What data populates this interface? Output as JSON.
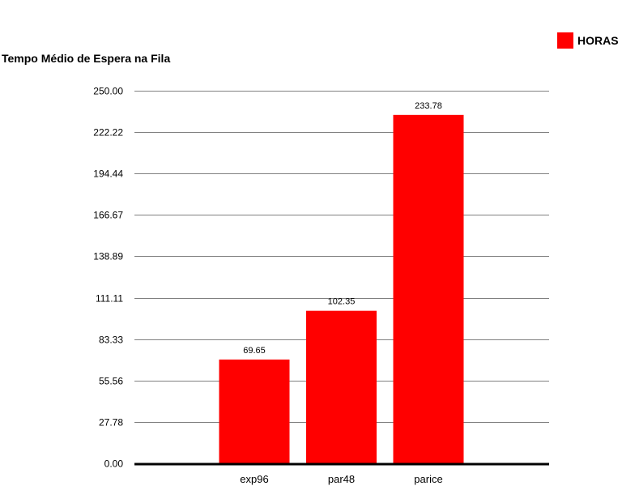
{
  "chart_data": {
    "type": "bar",
    "ylabel": "Tempo Médio de Espera na Fila",
    "categories": [
      "exp96",
      "par48",
      "parice"
    ],
    "series": [
      {
        "name": "HORAS",
        "values": [
          69.65,
          102.35,
          233.78
        ],
        "value_labels": [
          "69.65",
          "102.35",
          "233.78"
        ],
        "color": "#ff0000"
      }
    ],
    "ylim": [
      0,
      250
    ],
    "y_ticks": [
      0,
      27.78,
      55.56,
      83.33,
      111.11,
      138.89,
      166.67,
      194.44,
      222.22,
      250
    ],
    "y_tick_labels": [
      "0.00",
      "27.78",
      "55.56",
      "83.33",
      "111.11",
      "138.89",
      "166.67",
      "194.44",
      "222.22",
      "250.00"
    ],
    "grid": true,
    "legend_position": "top-right"
  },
  "colors": {
    "bar": "#ff0000",
    "grid": "#808080",
    "axis": "#000000"
  }
}
